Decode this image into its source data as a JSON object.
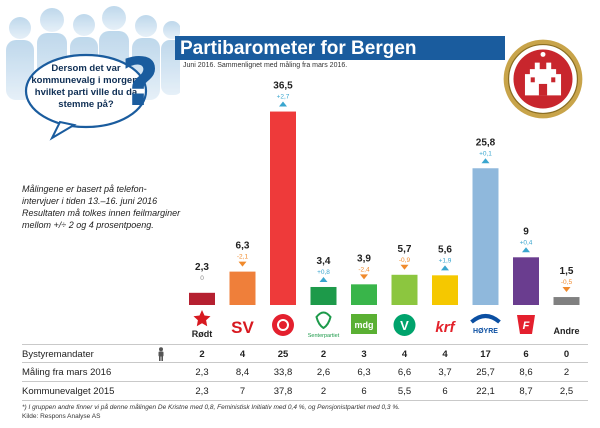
{
  "header": {
    "title": "Partibarometer for Bergen",
    "subtitle": "Juni 2016. Sammenlignet med måling fra mars 2016.",
    "question": "Dersom det var kommunevalg i morgen, hvilket parti ville du da stemme på?",
    "question_mark": "?"
  },
  "note": "Målingene er basert på telefon-intervjuer i tiden 13.–16. juni 2016 Resultaten må tolkes innen feilmarginer mellom +/÷ 2 og 4 prosentpoeng.",
  "colors": {
    "title_band": "#1a5c9e",
    "up": "#3aa6cf",
    "down": "#f08a2c"
  },
  "chart_data": {
    "type": "bar",
    "title": "Partibarometer for Bergen",
    "categories": [
      "Rødt",
      "SV",
      "Ap",
      "Senterpartiet",
      "MDG",
      "V",
      "KrF",
      "Høyre",
      "FrP",
      "Andre"
    ],
    "values": [
      2.3,
      6.3,
      36.5,
      3.4,
      3.9,
      5.7,
      5.6,
      25.8,
      9,
      1.5
    ],
    "value_labels": [
      "2,3",
      "6,3",
      "36,5",
      "3,4",
      "3,9",
      "5,7",
      "5,6",
      "25,8",
      "9",
      "1,5"
    ],
    "changes": [
      "0",
      "-2,1",
      "+2,7",
      "+0,8",
      "-2,4",
      "-0,9",
      "+1,9",
      "+0,1",
      "+0,4",
      "-0,5"
    ],
    "change_direction": [
      "none",
      "down",
      "up",
      "up",
      "down",
      "down",
      "up",
      "up",
      "up",
      "down"
    ],
    "bar_colors": [
      "#b52030",
      "#ef7f3a",
      "#ee3a3a",
      "#1d9a4a",
      "#39b54a",
      "#8cc63f",
      "#f5c800",
      "#8fb8dc",
      "#6a3d8f",
      "#808080"
    ],
    "ylim": [
      0,
      40
    ],
    "xlabel": "",
    "ylabel": ""
  },
  "logos": {
    "rodt": "Rødt",
    "sv": "SV",
    "senterpartiet": "Senterpartiet",
    "mdg": "mdg",
    "v": "V",
    "krf": "krf",
    "hoyre": "HØYRE",
    "andre": "Andre"
  },
  "table": {
    "rows": [
      {
        "label": "Bystyremandater",
        "values": [
          "2",
          "4",
          "25",
          "2",
          "3",
          "4",
          "4",
          "17",
          "6",
          "0"
        ]
      },
      {
        "label": "Måling fra mars 2016",
        "values": [
          "2,3",
          "8,4",
          "33,8",
          "2,6",
          "6,3",
          "6,6",
          "3,7",
          "25,7",
          "8,6",
          "2"
        ]
      },
      {
        "label": "Kommunevalget 2015",
        "values": [
          "2,3",
          "7",
          "37,8",
          "2",
          "6",
          "5,5",
          "6",
          "22,1",
          "8,7",
          "2,5"
        ]
      }
    ]
  },
  "footnote": "*) I gruppen andre finner vi på denne målingen De Kristne med 0,8, Feministisk Initiativ med 0,4 %, og Pensjonistpartiet med 0,3 %.",
  "source": "Kilde: Respons Analyse AS"
}
